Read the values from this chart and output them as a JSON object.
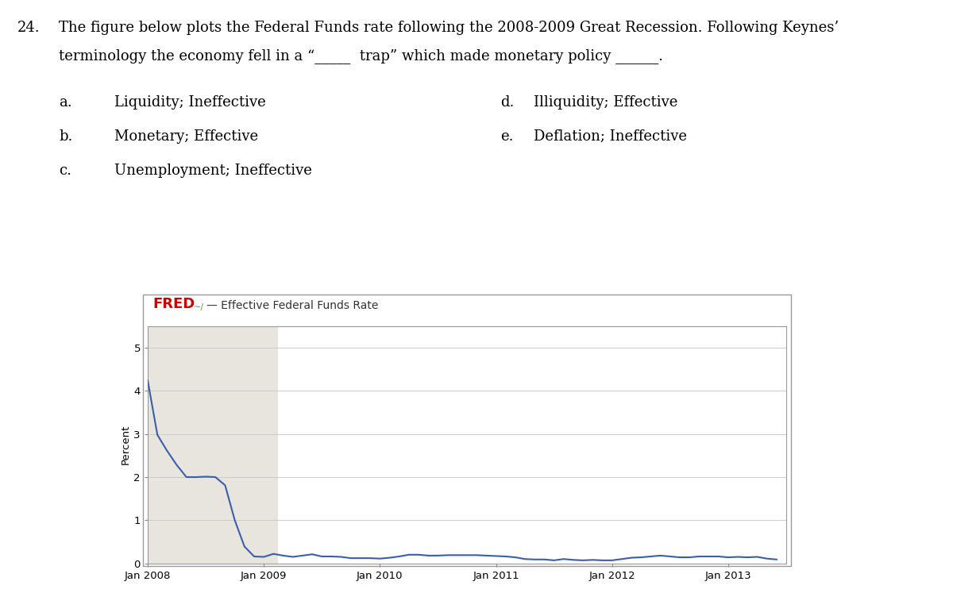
{
  "title_fred": "FRED",
  "title_series": "— Effective Federal Funds Rate",
  "ylabel": "Percent",
  "ylim": [
    0,
    5.5
  ],
  "yticks": [
    0,
    1,
    2,
    3,
    4,
    5
  ],
  "xtick_labels": [
    "Jan 2008",
    "Jan 2009",
    "Jan 2010",
    "Jan 2011",
    "Jan 2012",
    "Jan 2013"
  ],
  "line_color": "#3a5fa8",
  "recession_shade_color": "#e8e4de",
  "plot_bg_color": "#d6e4ee",
  "inner_bg_color": "#ffffff",
  "question_number": "24.",
  "question_text1": "The figure below plots the Federal Funds rate following the 2008-2009 Great Recession. Following Keynes’",
  "question_text2": "terminology the economy fell in a “_____  trap” which made monetary policy ______.",
  "choices_left": [
    "a.",
    "b.",
    "c."
  ],
  "choices_left_text": [
    "Liquidity; Ineffective",
    "Monetary; Effective",
    "Unemployment; Ineffective"
  ],
  "choices_right": [
    "d.",
    "e."
  ],
  "choices_right_text": [
    "Illiquidity; Effective",
    "Deflation; Ineffective"
  ],
  "outer_bg": "#ffffff",
  "grid_color": "#cccccc",
  "border_color": "#999999",
  "fred_color": "#cc0000",
  "months_data": [
    4.24,
    2.98,
    2.61,
    2.28,
    2.0,
    2.0,
    2.01,
    2.0,
    1.81,
    1.0,
    0.39,
    0.16,
    0.15,
    0.22,
    0.18,
    0.15,
    0.18,
    0.21,
    0.16,
    0.16,
    0.15,
    0.12,
    0.12,
    0.12,
    0.11,
    0.13,
    0.16,
    0.2,
    0.2,
    0.18,
    0.18,
    0.19,
    0.19,
    0.19,
    0.19,
    0.18,
    0.17,
    0.16,
    0.14,
    0.1,
    0.09,
    0.09,
    0.07,
    0.1,
    0.08,
    0.07,
    0.08,
    0.07,
    0.07,
    0.1,
    0.13,
    0.14,
    0.16,
    0.18,
    0.16,
    0.14,
    0.14,
    0.16,
    0.16,
    0.16,
    0.14,
    0.15,
    0.14,
    0.15,
    0.11,
    0.09
  ]
}
